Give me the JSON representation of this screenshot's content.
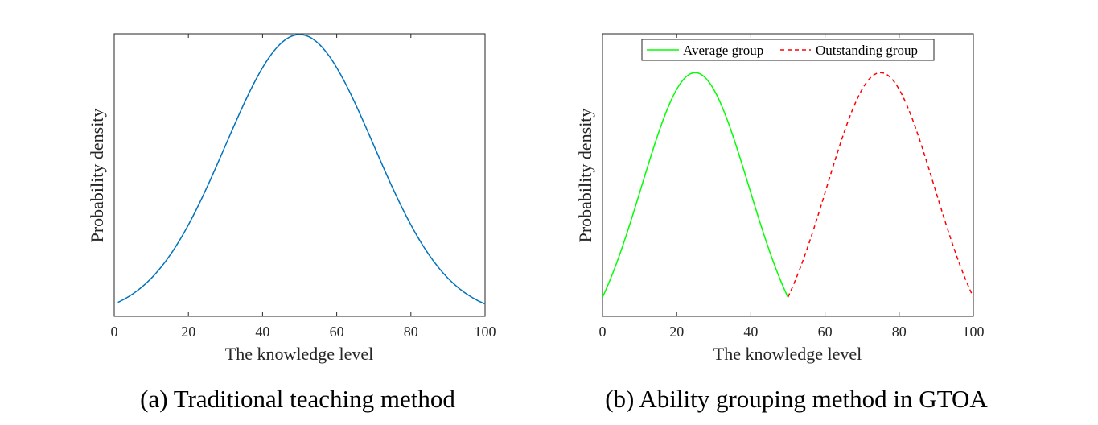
{
  "chart_data": [
    {
      "type": "line",
      "caption": "(a) Traditional teaching method",
      "xlabel": "The knowledge level",
      "ylabel": "Probability density",
      "xlim": [
        0,
        100
      ],
      "ylim": [
        0,
        0.02
      ],
      "xticks": [
        "0",
        "20",
        "40",
        "60",
        "80",
        "100"
      ],
      "grid": false,
      "series": [
        {
          "distribution": "normal",
          "mean": 50,
          "sd": 20,
          "x_range": [
            1,
            100
          ],
          "color": "#0072BD",
          "style": "solid"
        }
      ]
    },
    {
      "type": "line",
      "caption": "(b) Ability grouping method in GTOA",
      "xlabel": "The knowledge level",
      "ylabel": "Probability density",
      "xlim": [
        0,
        100
      ],
      "ylim": [
        0.0044,
        0.0312
      ],
      "xticks": [
        "0",
        "20",
        "40",
        "60",
        "80",
        "100"
      ],
      "grid": false,
      "legend_position": "top-center",
      "series": [
        {
          "name": "Average group",
          "distribution": "normal",
          "mean": 25,
          "sd": 14.5,
          "x_range": [
            0,
            50
          ],
          "color": "#00FF00",
          "style": "solid"
        },
        {
          "name": "Outstanding group",
          "distribution": "normal",
          "mean": 75,
          "sd": 14.5,
          "x_range": [
            50,
            100
          ],
          "color": "#FF0000",
          "style": "dashed"
        }
      ]
    }
  ]
}
